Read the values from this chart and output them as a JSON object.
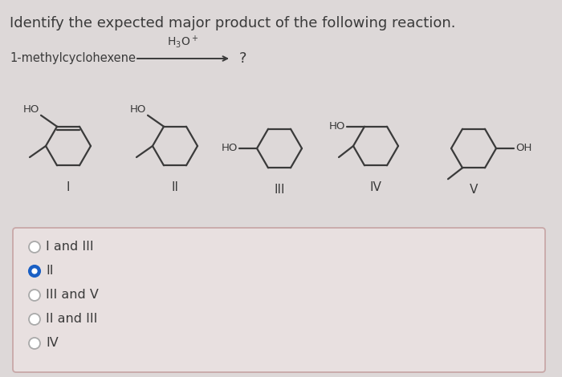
{
  "title": "Identify the expected major product of the following reaction.",
  "title_fontsize": 13,
  "bg_color": "#ddd8d8",
  "box_bg": "#e8e0e0",
  "border_color": "#c8a8a8",
  "text_color": "#3a3a3a",
  "choices": [
    "I and III",
    "II",
    "III and V",
    "II and III",
    "IV"
  ],
  "selected_index": 1,
  "selected_color": "#1a5fc4",
  "radio_size": 7
}
